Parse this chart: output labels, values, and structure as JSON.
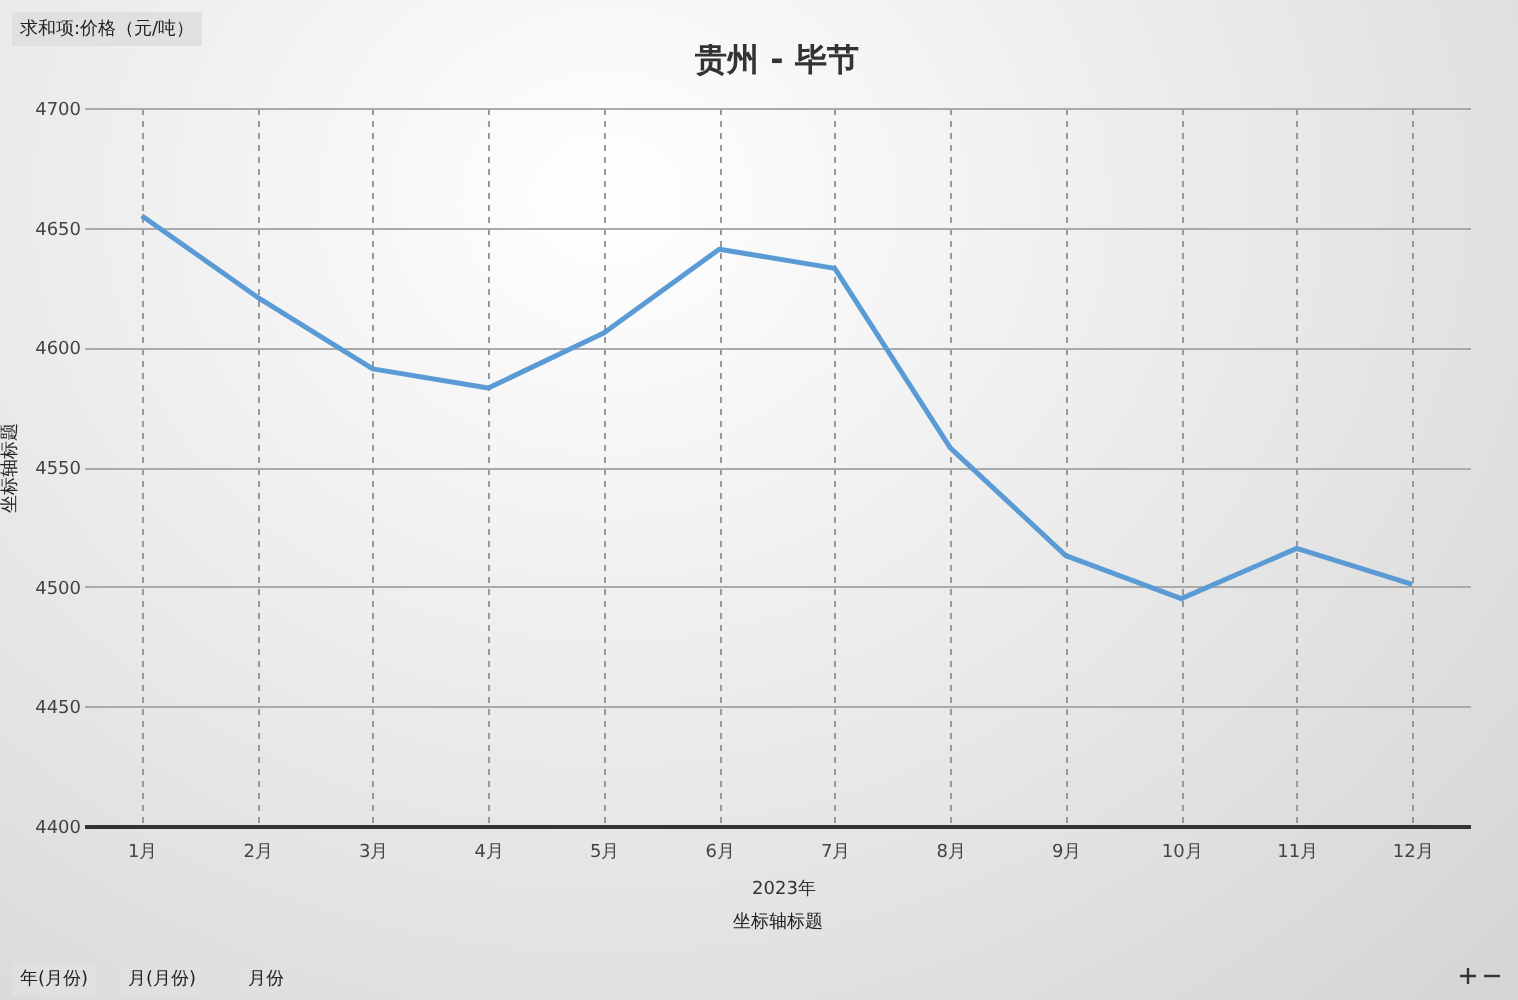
{
  "chart_data": {
    "type": "line",
    "title": "贵州 - 毕节",
    "xlabel": "坐标轴标题",
    "ylabel": "坐标轴标题",
    "categories": [
      "1月",
      "2月",
      "3月",
      "4月",
      "5月",
      "6月",
      "7月",
      "8月",
      "9月",
      "10月",
      "11月",
      "12月"
    ],
    "series": [
      {
        "color": "#5b9bd5",
        "values": [
          4655,
          4621,
          4591,
          4583,
          4606,
          4641,
          4633,
          4558,
          4513,
          4495,
          4516,
          4501
        ]
      }
    ],
    "ylim": [
      4400,
      4700
    ],
    "yticks": [
      4400,
      4450,
      4500,
      4550,
      4600,
      4650,
      4700
    ],
    "grid": true,
    "marker": "none",
    "line_style": "solid",
    "annotations": [
      "求和项:价格（元/吨）",
      "2023年",
      "年(月份)",
      "月(月份)",
      "月份"
    ]
  }
}
